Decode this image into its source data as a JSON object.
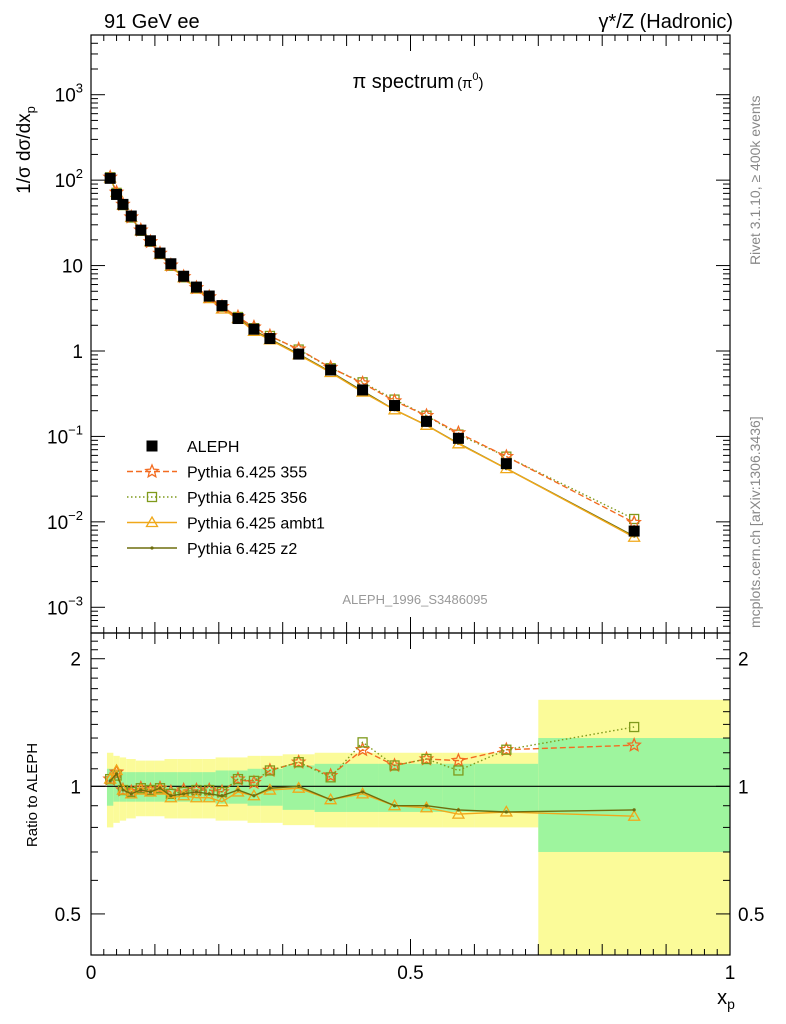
{
  "header": {
    "left": "91 GeV ee",
    "right": "γ*/Z (Hadronic)"
  },
  "side_texts": {
    "rivet": "Rivet 3.1.10, ≥ 400k events",
    "mcplots": "mcplots.cern.ch [arXiv:1306.3436]"
  },
  "watermark": "ALEPH_1996_S3486095",
  "colors": {
    "aleph": "#000000",
    "p355": "#f36c21",
    "p356": "#7f9a1c",
    "ambt1": "#f0a81a",
    "z2": "#6e6e0e",
    "band_inner": "#9ef59e",
    "band_outer": "#fbfb99"
  },
  "chart_data": [
    {
      "type": "line",
      "title": "π spectrum",
      "title_suffix": "(π",
      "title_sup": "0",
      "title_close": ")",
      "ylabel": "1/σ dσ/dx",
      "ylabel_sub": "p",
      "yscale": "log",
      "ylim": [
        0.0005,
        5000
      ],
      "xlim": [
        0,
        1
      ],
      "y_ticks": [
        {
          "value": 0.001,
          "mant": "10",
          "exp": "−3"
        },
        {
          "value": 0.01,
          "mant": "10",
          "exp": "−2"
        },
        {
          "value": 0.1,
          "mant": "10",
          "exp": "−1"
        },
        {
          "value": 1,
          "mant": "1",
          "exp": ""
        },
        {
          "value": 10,
          "mant": "10",
          "exp": ""
        },
        {
          "value": 100,
          "mant": "10",
          "exp": "2"
        },
        {
          "value": 1000,
          "mant": "10",
          "exp": "3"
        }
      ],
      "legend": [
        {
          "key": "aleph",
          "label": "ALEPH"
        },
        {
          "key": "p355",
          "label": "Pythia 6.425 355"
        },
        {
          "key": "p356",
          "label": "Pythia 6.425 356"
        },
        {
          "key": "ambt1",
          "label": "Pythia 6.425 ambt1"
        },
        {
          "key": "z2",
          "label": "Pythia 6.425 z2"
        }
      ],
      "x": [
        0.03,
        0.04,
        0.05,
        0.063,
        0.078,
        0.093,
        0.108,
        0.125,
        0.145,
        0.165,
        0.185,
        0.205,
        0.23,
        0.255,
        0.28,
        0.325,
        0.375,
        0.425,
        0.475,
        0.525,
        0.575,
        0.65,
        0.85
      ],
      "series": [
        {
          "key": "aleph",
          "name": "ALEPH",
          "marker": "square",
          "values": [
            105,
            68,
            52,
            38,
            26,
            19.5,
            14,
            10.5,
            7.5,
            5.6,
            4.4,
            3.4,
            2.4,
            1.8,
            1.4,
            0.92,
            0.6,
            0.35,
            0.23,
            0.15,
            0.095,
            0.048,
            0.0078
          ]
        },
        {
          "key": "p355",
          "name": "Pythia 6.425 355",
          "marker": "star",
          "dash": "6,3",
          "values": [
            108,
            72,
            52,
            37,
            26,
            19,
            13.9,
            10.1,
            7.4,
            5.5,
            4.3,
            3.3,
            2.5,
            1.9,
            1.5,
            1.05,
            0.64,
            0.42,
            0.26,
            0.175,
            0.11,
            0.058,
            0.0098
          ]
        },
        {
          "key": "p356",
          "name": "Pythia 6.425 356",
          "marker": "open-square",
          "dash": "1.5,2.5",
          "values": [
            108,
            71,
            51,
            36.5,
            25.5,
            19,
            13.7,
            10,
            7.3,
            5.5,
            4.3,
            3.3,
            2.5,
            1.85,
            1.5,
            1.04,
            0.63,
            0.43,
            0.27,
            0.175,
            0.105,
            0.058,
            0.0108
          ]
        },
        {
          "key": "ambt1",
          "name": "Pythia 6.425 ambt1",
          "marker": "open-triangle",
          "dash": "",
          "values": [
            106,
            72,
            51,
            36.5,
            25.5,
            19,
            13.5,
            9.8,
            7.2,
            5.3,
            4.1,
            3.1,
            2.4,
            1.7,
            1.35,
            0.9,
            0.56,
            0.33,
            0.205,
            0.135,
            0.082,
            0.042,
            0.0066
          ]
        },
        {
          "key": "z2",
          "name": "Pythia 6.425 z2",
          "marker": "dot",
          "dash": "",
          "values": [
            107,
            71,
            51,
            36.5,
            25.5,
            19,
            13.7,
            10,
            7.2,
            5.4,
            4.2,
            3.2,
            2.45,
            1.75,
            1.38,
            0.92,
            0.57,
            0.34,
            0.205,
            0.135,
            0.083,
            0.042,
            0.0068
          ]
        }
      ]
    },
    {
      "type": "line",
      "ylabel": "Ratio to ALEPH",
      "xlabel": "x",
      "xlabel_sub": "p",
      "yscale": "log",
      "ylim": [
        0.4,
        2.3
      ],
      "xlim": [
        0,
        1
      ],
      "y_ticks": [
        0.5,
        1,
        2
      ],
      "y_tick_labels": [
        "0.5",
        "1",
        "2"
      ],
      "x_ticks": [
        0,
        0.5,
        1
      ],
      "x_tick_labels": [
        "0",
        "0.5",
        "1"
      ],
      "band_edges": [
        0.025,
        0.035,
        0.045,
        0.055,
        0.07,
        0.085,
        0.1,
        0.115,
        0.135,
        0.155,
        0.175,
        0.195,
        0.215,
        0.245,
        0.265,
        0.3,
        0.35,
        0.4,
        0.45,
        0.5,
        0.55,
        0.6,
        0.7,
        1.0
      ],
      "band_inner": [
        0.1,
        0.08,
        0.08,
        0.08,
        0.08,
        0.08,
        0.08,
        0.08,
        0.08,
        0.08,
        0.08,
        0.09,
        0.09,
        0.1,
        0.1,
        0.12,
        0.13,
        0.13,
        0.13,
        0.13,
        0.13,
        0.13,
        0.3
      ],
      "band_outer": [
        0.2,
        0.18,
        0.17,
        0.16,
        0.15,
        0.15,
        0.15,
        0.16,
        0.16,
        0.16,
        0.16,
        0.17,
        0.17,
        0.18,
        0.18,
        0.19,
        0.2,
        0.2,
        0.2,
        0.2,
        0.2,
        0.2,
        0.6
      ],
      "series": [
        {
          "key": "p355",
          "name": "Pythia 6.425 355",
          "values": [
            1.04,
            1.08,
            0.98,
            0.97,
            0.99,
            0.98,
            0.99,
            0.97,
            0.98,
            0.98,
            0.98,
            0.97,
            1.04,
            1.02,
            1.09,
            1.14,
            1.06,
            1.22,
            1.12,
            1.16,
            1.15,
            1.22,
            1.25
          ]
        },
        {
          "key": "p356",
          "name": "Pythia 6.425 356",
          "values": [
            1.04,
            1.06,
            0.98,
            0.97,
            0.99,
            0.98,
            0.99,
            0.96,
            0.97,
            0.98,
            0.98,
            0.97,
            1.04,
            1.03,
            1.09,
            1.14,
            1.05,
            1.27,
            1.12,
            1.16,
            1.09,
            1.22,
            1.38
          ]
        },
        {
          "key": "ambt1",
          "name": "Pythia 6.425 ambt1",
          "values": [
            1.04,
            1.09,
            0.98,
            0.96,
            0.98,
            0.97,
            0.98,
            0.94,
            0.95,
            0.94,
            0.94,
            0.92,
            0.97,
            0.95,
            0.98,
            0.99,
            0.93,
            0.96,
            0.9,
            0.89,
            0.86,
            0.87,
            0.85
          ]
        },
        {
          "key": "z2",
          "name": "Pythia 6.425 z2",
          "values": [
            1.03,
            1.07,
            0.98,
            0.96,
            0.98,
            0.97,
            0.99,
            0.95,
            0.96,
            0.97,
            0.96,
            0.95,
            0.98,
            0.95,
            0.99,
            1.0,
            0.93,
            0.97,
            0.9,
            0.9,
            0.88,
            0.87,
            0.88
          ]
        }
      ]
    }
  ]
}
